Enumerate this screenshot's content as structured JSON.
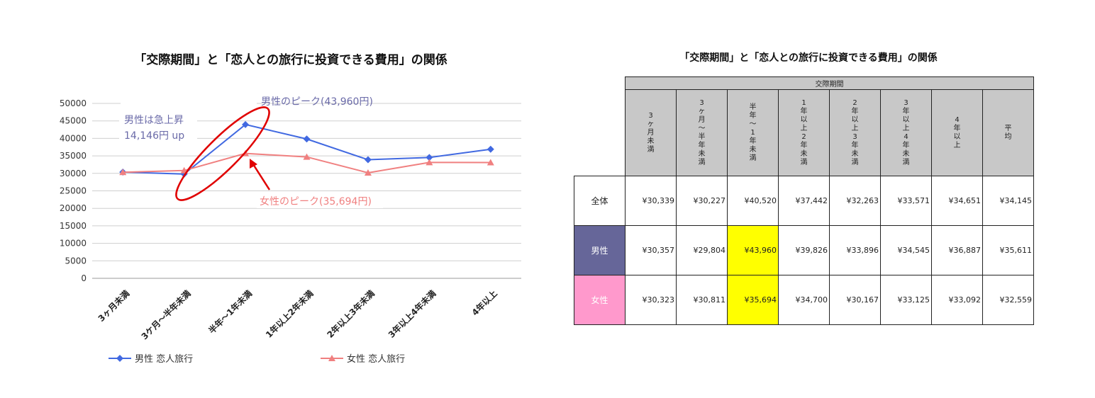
{
  "chart_data": {
    "type": "line",
    "title": "「交際期間」と「恋人との旅行に投資できる費用」の関係",
    "categories": [
      "3ヶ月未満",
      "3ケ月～半年未満",
      "半年～1年未満",
      "1年以上2年未満",
      "2年以上3年未満",
      "3年以上4年未満",
      "4年以上"
    ],
    "series": [
      {
        "name": "男性 恋人旅行",
        "color": "#4169e1",
        "marker": "diamond",
        "values": [
          30357,
          29804,
          43960,
          39826,
          33896,
          34545,
          36887
        ]
      },
      {
        "name": "女性 恋人旅行",
        "color": "#f08080",
        "marker": "triangle",
        "values": [
          30323,
          30811,
          35694,
          34700,
          30167,
          33125,
          33092
        ]
      }
    ],
    "ylim": [
      0,
      50000
    ],
    "yticks": [
      "0",
      "5000",
      "10000",
      "15000",
      "20000",
      "25000",
      "30000",
      "35000",
      "40000",
      "45000",
      "50000"
    ],
    "grid": true,
    "legend_position": "bottom",
    "annotations": {
      "male_peak": "男性のピーク(43,960円)",
      "female_peak": "女性のピーク(35,694円)",
      "male_rise_line1": "男性は急上昇",
      "male_rise_line2": "14,146円 up"
    },
    "annotation_colors": {
      "male": "#6a6aa8",
      "female": "#f08080",
      "highlight": "#e00000"
    }
  },
  "table": {
    "title": "「交際期間」と「恋人との旅行に投資できる費用」の関係",
    "group_header": "交際期間",
    "columns": [
      "3ヶ月未満",
      "3ヶ月～半年未満",
      "半年～1年未満",
      "1年以上2年未満",
      "2年以上3年未満",
      "3年以上4年未満",
      "4年以上",
      "平均"
    ],
    "rows": [
      {
        "label": "全体",
        "values": [
          "¥30,339",
          "¥30,227",
          "¥40,520",
          "¥37,442",
          "¥32,263",
          "¥33,571",
          "¥34,651",
          "¥34,145"
        ]
      },
      {
        "label": "男性",
        "values": [
          "¥30,357",
          "¥29,804",
          "¥43,960",
          "¥39,826",
          "¥33,896",
          "¥34,545",
          "¥36,887",
          "¥35,611"
        ]
      },
      {
        "label": "女性",
        "values": [
          "¥30,323",
          "¥30,811",
          "¥35,694",
          "¥34,700",
          "¥30,167",
          "¥33,125",
          "¥33,092",
          "¥32,559"
        ]
      }
    ],
    "highlight_color": "#ffff00",
    "male_color": "#666699",
    "female_color": "#ff99cc"
  }
}
